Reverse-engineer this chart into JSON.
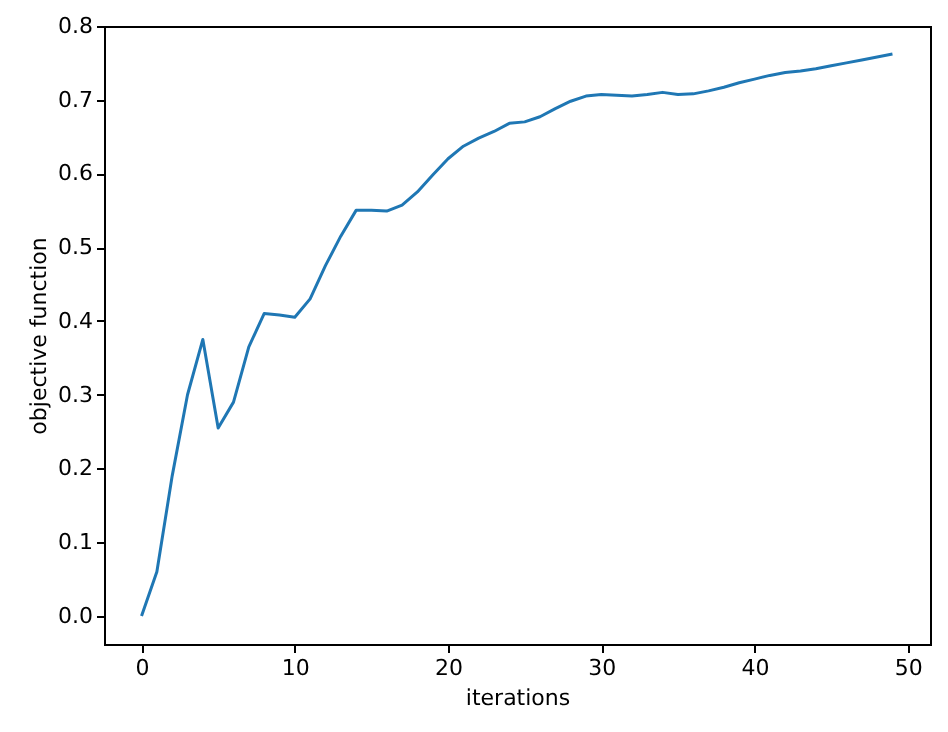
{
  "chart_data": {
    "type": "line",
    "xlabel": "iterations",
    "ylabel": "objective function",
    "x": [
      0,
      1,
      2,
      3,
      4,
      5,
      6,
      7,
      8,
      9,
      10,
      11,
      12,
      13,
      14,
      15,
      16,
      17,
      18,
      19,
      20,
      21,
      22,
      23,
      24,
      25,
      26,
      27,
      28,
      29,
      30,
      31,
      32,
      33,
      34,
      35,
      36,
      37,
      38,
      39,
      40,
      41,
      42,
      43,
      44,
      45,
      46,
      47,
      48,
      49
    ],
    "series": [
      {
        "color": "#1f77b4",
        "values": [
          0.0,
          0.06,
          0.19,
          0.3,
          0.375,
          0.255,
          0.29,
          0.365,
          0.41,
          0.408,
          0.405,
          0.43,
          0.475,
          0.515,
          0.55,
          0.55,
          0.549,
          0.557,
          0.575,
          0.598,
          0.62,
          0.637,
          0.648,
          0.657,
          0.668,
          0.67,
          0.677,
          0.688,
          0.698,
          0.705,
          0.707,
          0.706,
          0.705,
          0.707,
          0.71,
          0.707,
          0.708,
          0.712,
          0.717,
          0.723,
          0.728,
          0.733,
          0.737,
          0.739,
          0.742,
          0.746,
          0.75,
          0.754,
          0.758,
          0.762
        ]
      }
    ],
    "xlim": [
      -2.45,
      51.45
    ],
    "xticks": [
      0,
      10,
      20,
      30,
      40,
      50
    ],
    "ylim": [
      -0.038,
      0.8
    ],
    "yticks": [
      {
        "value": 0,
        "label": "0.0"
      },
      0.1,
      0.2,
      0.3,
      0.4,
      0.5,
      0.6,
      0.7,
      0.8
    ],
    "grid": false,
    "marker": "none",
    "line_style": "solid"
  }
}
